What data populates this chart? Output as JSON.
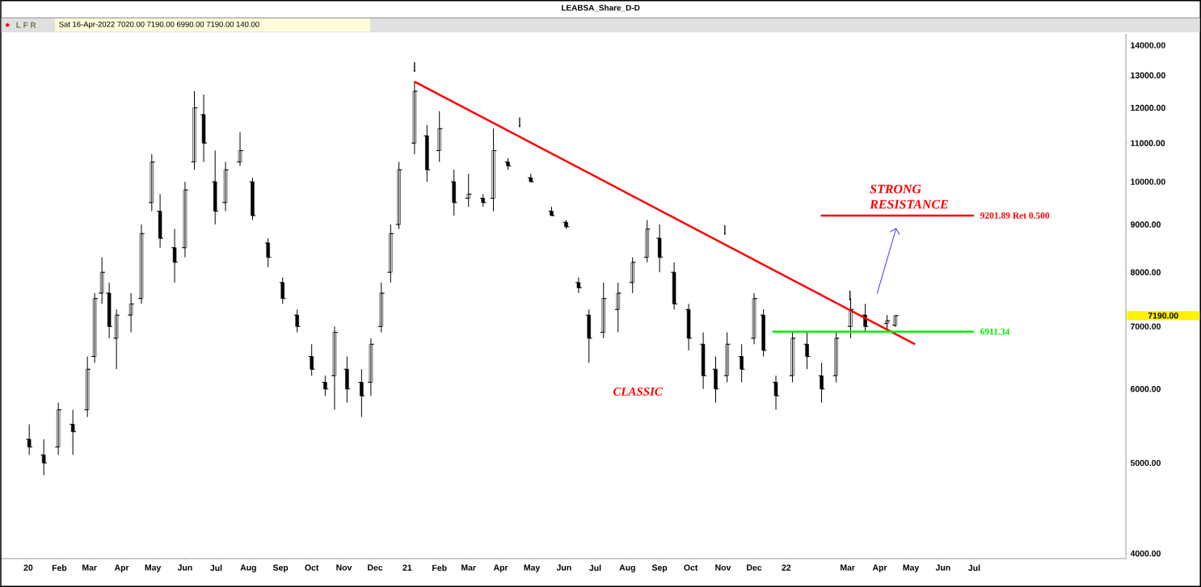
{
  "chart_data": {
    "type": "candlestick",
    "title": "LEABSA_Share_D-D",
    "x": [
      "2020-01-03",
      "2020-01-17",
      "2020-01-31",
      "2020-02-14",
      "2020-02-28",
      "2020-03-06",
      "2020-03-13",
      "2020-03-20",
      "2020-03-27",
      "2020-04-10",
      "2020-04-20",
      "2020-04-30",
      "2020-05-08",
      "2020-05-22",
      "2020-06-01",
      "2020-06-10",
      "2020-06-19",
      "2020-06-30",
      "2020-07-10",
      "2020-07-24",
      "2020-08-05",
      "2020-08-20",
      "2020-09-03",
      "2020-09-17",
      "2020-10-01",
      "2020-10-14",
      "2020-10-23",
      "2020-11-04",
      "2020-11-18",
      "2020-11-27",
      "2020-12-07",
      "2020-12-16",
      "2020-12-24",
      "2021-01-08",
      "2021-01-20",
      "2021-02-01",
      "2021-02-15",
      "2021-03-01",
      "2021-03-15",
      "2021-03-25",
      "2021-04-08",
      "2021-04-30",
      "2021-05-20",
      "2021-06-03",
      "2021-06-15",
      "2021-06-25",
      "2021-07-09",
      "2021-07-23",
      "2021-08-06",
      "2021-08-20",
      "2021-09-01",
      "2021-09-15",
      "2021-09-29",
      "2021-10-13",
      "2021-10-25",
      "2021-11-05",
      "2021-11-19",
      "2021-12-01",
      "2021-12-10",
      "2021-12-22",
      "2022-01-07",
      "2022-01-21",
      "2022-02-04",
      "2022-02-18",
      "2022-03-04",
      "2022-03-18",
      "2022-04-08",
      "2022-04-16"
    ],
    "ohlc": [
      [
        5300,
        5500,
        5100,
        5200
      ],
      [
        5100,
        5300,
        4850,
        5000
      ],
      [
        5200,
        5800,
        5100,
        5700
      ],
      [
        5500,
        5700,
        5100,
        5400
      ],
      [
        5700,
        6500,
        5600,
        6300
      ],
      [
        6500,
        7600,
        6400,
        7500
      ],
      [
        7600,
        8300,
        7400,
        8000
      ],
      [
        7600,
        7800,
        6800,
        7000
      ],
      [
        6800,
        7300,
        6300,
        7200
      ],
      [
        7200,
        7600,
        6900,
        7400
      ],
      [
        7500,
        9000,
        7400,
        8800
      ],
      [
        9500,
        10700,
        9300,
        10500
      ],
      [
        9300,
        9700,
        8500,
        8700
      ],
      [
        8500,
        8900,
        7800,
        8200
      ],
      [
        8500,
        10000,
        8300,
        9800
      ],
      [
        10500,
        12500,
        10300,
        12000
      ],
      [
        11800,
        12400,
        10500,
        11000
      ],
      [
        10000,
        10800,
        9000,
        9300
      ],
      [
        9500,
        10500,
        9300,
        10300
      ],
      [
        10500,
        11300,
        10400,
        10800
      ],
      [
        10000,
        10100,
        9100,
        9200
      ],
      [
        8600,
        8700,
        8100,
        8300
      ],
      [
        7800,
        7900,
        7400,
        7500
      ],
      [
        7200,
        7300,
        6900,
        7000
      ],
      [
        6500,
        6700,
        6200,
        6300
      ],
      [
        6100,
        6200,
        5900,
        6000
      ],
      [
        6200,
        7000,
        5700,
        6900
      ],
      [
        6300,
        6500,
        5800,
        6000
      ],
      [
        6100,
        6300,
        5600,
        5900
      ],
      [
        6100,
        6800,
        5900,
        6700
      ],
      [
        7000,
        7800,
        6900,
        7600
      ],
      [
        8000,
        9000,
        7800,
        8800
      ],
      [
        9000,
        10500,
        8900,
        10300
      ],
      [
        11000,
        12800,
        10700,
        12500
      ],
      [
        11200,
        11500,
        10000,
        10300
      ],
      [
        10800,
        11900,
        10500,
        11400
      ],
      [
        10000,
        10300,
        9200,
        9500
      ],
      [
        9600,
        10200,
        9400,
        9700
      ],
      [
        9600,
        9700,
        9400,
        9500
      ],
      [
        9600,
        11400,
        9300,
        10800
      ],
      [
        10500,
        10600,
        10300,
        10400
      ],
      [
        10100,
        10200,
        10000,
        10000
      ],
      [
        9300,
        9400,
        9200,
        9200
      ],
      [
        9050,
        9100,
        8900,
        8950
      ],
      [
        7800,
        7900,
        7600,
        7700
      ],
      [
        7200,
        7300,
        6400,
        6800
      ],
      [
        6900,
        7800,
        6800,
        7500
      ],
      [
        7300,
        7800,
        6900,
        7600
      ],
      [
        7800,
        8300,
        7600,
        8200
      ],
      [
        8300,
        9100,
        8200,
        8900
      ],
      [
        8700,
        9000,
        8000,
        8300
      ],
      [
        8000,
        8200,
        7300,
        7400
      ],
      [
        7300,
        7400,
        6600,
        6800
      ],
      [
        6700,
        6900,
        6000,
        6200
      ],
      [
        6300,
        6500,
        5800,
        6000
      ],
      [
        6200,
        6900,
        6100,
        6700
      ],
      [
        6500,
        6700,
        6100,
        6300
      ],
      [
        6800,
        7600,
        6700,
        7500
      ],
      [
        7200,
        7300,
        6500,
        6600
      ],
      [
        6100,
        6200,
        5700,
        5900
      ],
      [
        6200,
        6900,
        6100,
        6800
      ],
      [
        6700,
        6900,
        6300,
        6500
      ],
      [
        6200,
        6400,
        5800,
        6000
      ],
      [
        6200,
        6900,
        6100,
        6800
      ],
      [
        7000,
        7500,
        6800,
        7300
      ],
      [
        7200,
        7400,
        6900,
        7000
      ],
      [
        7050,
        7200,
        6950,
        7100
      ],
      [
        7020,
        7190,
        6990,
        7190
      ]
    ],
    "color": "#000000",
    "series": [
      {
        "type": "line",
        "color": "#ff0000",
        "x": [
          "2021-01-08",
          "2022-05-05"
        ],
        "values": [
          12800,
          6700
        ]
      }
    ],
    "log": "y",
    "xlim": [
      "2019-12-06",
      "2022-11-24"
    ],
    "xticks": [
      {
        "value": "2020-01-02",
        "label": "20"
      },
      {
        "value": "2020-02-01",
        "label": "Feb"
      },
      {
        "value": "2020-03-01",
        "label": "Mar"
      },
      {
        "value": "2020-04-01",
        "label": "Apr"
      },
      {
        "value": "2020-05-01",
        "label": "May"
      },
      {
        "value": "2020-06-01",
        "label": "Jun"
      },
      {
        "value": "2020-07-01",
        "label": "Jul"
      },
      {
        "value": "2020-08-01",
        "label": "Aug"
      },
      {
        "value": "2020-09-01",
        "label": "Sep"
      },
      {
        "value": "2020-10-01",
        "label": "Oct"
      },
      {
        "value": "2020-11-01",
        "label": "Nov"
      },
      {
        "value": "2020-12-01",
        "label": "Dec"
      },
      {
        "value": "2021-01-01",
        "label": "21"
      },
      {
        "value": "2021-02-01",
        "label": "Feb"
      },
      {
        "value": "2021-03-01",
        "label": "Mar"
      },
      {
        "value": "2021-04-01",
        "label": "Apr"
      },
      {
        "value": "2021-05-01",
        "label": "May"
      },
      {
        "value": "2021-06-01",
        "label": "Jun"
      },
      {
        "value": "2021-07-01",
        "label": "Jul"
      },
      {
        "value": "2021-08-01",
        "label": "Aug"
      },
      {
        "value": "2021-09-01",
        "label": "Sep"
      },
      {
        "value": "2021-10-01",
        "label": "Oct"
      },
      {
        "value": "2021-11-01",
        "label": "Nov"
      },
      {
        "value": "2021-12-01",
        "label": "Dec"
      },
      {
        "value": "2022-01-01",
        "label": "22"
      },
      {
        "value": "2022-03-01",
        "label": "Mar"
      },
      {
        "value": "2022-04-01",
        "label": "Apr"
      },
      {
        "value": "2022-05-01",
        "label": "May"
      },
      {
        "value": "2022-06-01",
        "label": "Jun"
      },
      {
        "value": "2022-07-01",
        "label": "Jul"
      }
    ],
    "ylim": [
      3950,
      14400
    ],
    "yticks": [
      {
        "value": 4000,
        "label": "4000.00"
      },
      {
        "value": 5000,
        "label": "5000.00"
      },
      {
        "value": 6000,
        "label": "6000.00"
      },
      {
        "value": 7000,
        "label": "7000.00"
      },
      {
        "value": 8000,
        "label": "8000.00"
      },
      {
        "value": 9000,
        "label": "9000.00"
      },
      {
        "value": 10000,
        "label": "10000.00"
      },
      {
        "value": 11000,
        "label": "11000.00"
      },
      {
        "value": 12000,
        "label": "12000.00"
      },
      {
        "value": 13000,
        "label": "13000.00"
      },
      {
        "value": 14000,
        "label": "14000.00"
      }
    ],
    "ref_lines": [
      {
        "axis": "y",
        "value": 9201.89,
        "label": "9201.89 Ret 0.500",
        "color": "#ff0000"
      },
      {
        "axis": "y",
        "value": 6911.34,
        "label": "6911.34",
        "color": "#00ee00"
      }
    ],
    "annotations": [
      "Sat 16-Apr-2022  7020.00  7190.00  6990.00  7190.00  140.00",
      "L F R",
      "STRONG RESISTANCE",
      "CLASSIC",
      "7190.00"
    ],
    "grid": false
  }
}
